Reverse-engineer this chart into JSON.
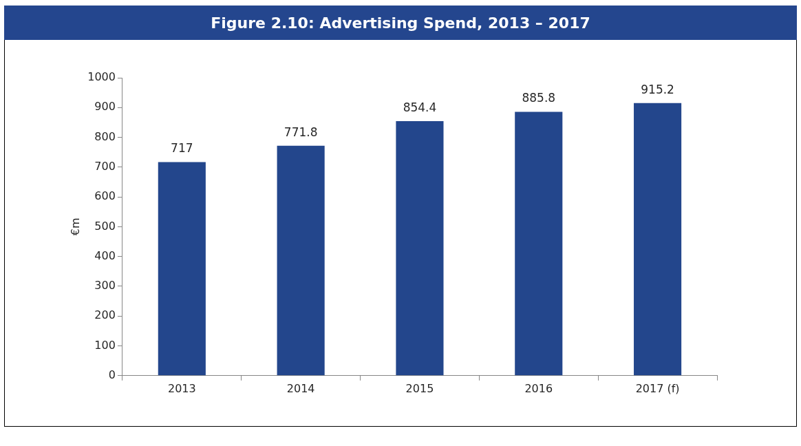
{
  "chart_data": {
    "type": "bar",
    "title": "Figure 2.10: Advertising Spend, 2013 – 2017",
    "ylabel": "€m",
    "categories": [
      "2013",
      "2014",
      "2015",
      "2016",
      "2017 (f)"
    ],
    "values": [
      717,
      771.8,
      854.4,
      885.8,
      915.2
    ],
    "color": "#23468c",
    "ylim": [
      0,
      1000
    ],
    "yticks": [
      0,
      100,
      200,
      300,
      400,
      500,
      600,
      700,
      800,
      900,
      1000
    ],
    "data_labels": true,
    "legend": false
  }
}
